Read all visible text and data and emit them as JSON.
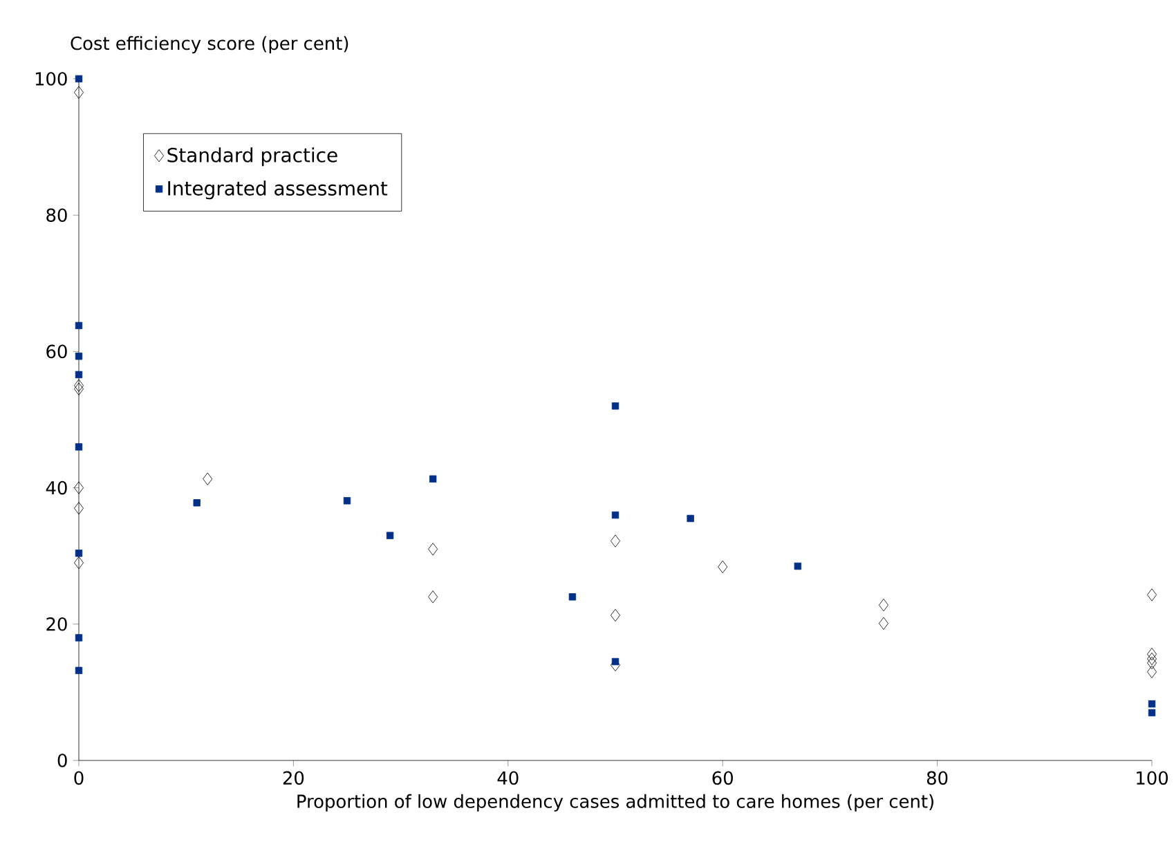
{
  "chart_data": {
    "type": "scatter",
    "xlabel": "Proportion of low dependency cases admitted to care homes (per cent)",
    "ylabel": "Cost efficiency score (per cent)",
    "xlim": [
      0,
      100
    ],
    "ylim": [
      0,
      100
    ],
    "xticks": [
      0,
      20,
      40,
      60,
      80,
      100
    ],
    "yticks": [
      0,
      20,
      40,
      60,
      80,
      100
    ],
    "grid": false,
    "legend": "top left",
    "series": [
      {
        "name": "Standard practice",
        "color": "#000000",
        "marker": "diamond",
        "x": [
          0,
          0,
          0,
          0,
          0,
          0,
          12,
          33,
          33,
          50,
          50,
          50,
          60,
          75,
          75,
          100,
          100,
          100,
          100,
          100
        ],
        "values": [
          98,
          55,
          54.5,
          40,
          37,
          29,
          41.3,
          31,
          24,
          32.2,
          21.3,
          14,
          28.4,
          22.8,
          20.1,
          24.3,
          15.6,
          14.9,
          14.3,
          13
        ]
      },
      {
        "name": "Integrated assessment",
        "color": "#003087",
        "marker": "square",
        "x": [
          0,
          0,
          0,
          0,
          0,
          0,
          0,
          0,
          11,
          25,
          29,
          33,
          46,
          50,
          50,
          50,
          57,
          67,
          100,
          100
        ],
        "values": [
          100,
          63.8,
          59.3,
          56.6,
          46,
          30.4,
          18,
          13.2,
          37.8,
          38.1,
          33,
          41.3,
          24,
          52,
          36,
          14.5,
          35.5,
          28.5,
          8.3,
          7
        ]
      }
    ]
  }
}
